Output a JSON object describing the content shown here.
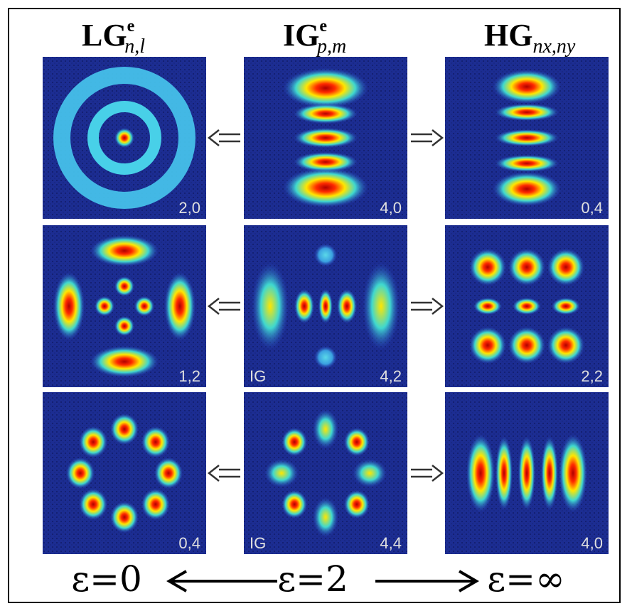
{
  "headers": [
    {
      "main": "LG",
      "sup": "e",
      "sub": "n,l"
    },
    {
      "main": "IG",
      "sup": "e",
      "sub": "p,m"
    },
    {
      "main": "HG",
      "sub": "nx,ny"
    }
  ],
  "panels": [
    {
      "label": "2,0"
    },
    {
      "label": "4,0"
    },
    {
      "label": "0,4"
    },
    {
      "label": "1,2"
    },
    {
      "tag": "IG",
      "label": "4,2"
    },
    {
      "label": "2,2"
    },
    {
      "label": "0,4"
    },
    {
      "tag": "IG",
      "label": "4,4"
    },
    {
      "label": "4,0"
    }
  ],
  "footer": [
    "ε=0",
    "ε=2",
    "ε=∞"
  ]
}
